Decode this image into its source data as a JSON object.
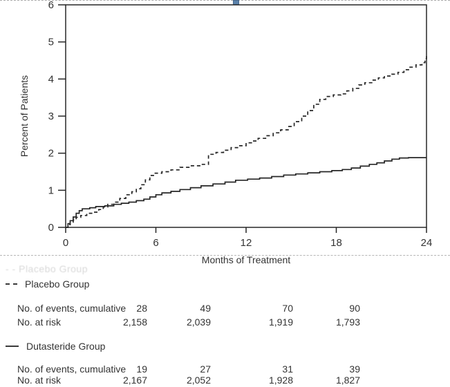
{
  "selection": {
    "handle_color": "#5b82ab",
    "border_style": "dashed-gray"
  },
  "chart_data": {
    "type": "line",
    "subtype": "kaplan-meier-step",
    "title": "",
    "xlabel": "Months of Treatment",
    "ylabel": "Percent of Patients",
    "xlim": [
      0,
      24
    ],
    "ylim": [
      0,
      6
    ],
    "xticks": [
      "0",
      "6",
      "12",
      "18",
      "24"
    ],
    "xtick_values": [
      0,
      6,
      12,
      18,
      24
    ],
    "yticks": [
      "0",
      "1",
      "2",
      "3",
      "4",
      "5",
      "6"
    ],
    "ytick_values": [
      0,
      1,
      2,
      3,
      4,
      5,
      6
    ],
    "grid": false,
    "frame": true,
    "line_color": "#262626",
    "series": [
      {
        "name": "Placebo Group",
        "style": "dashed",
        "points": [
          [
            0,
            0
          ],
          [
            0.15,
            0.07
          ],
          [
            0.3,
            0.14
          ],
          [
            0.5,
            0.2
          ],
          [
            0.7,
            0.27
          ],
          [
            1.0,
            0.32
          ],
          [
            1.4,
            0.38
          ],
          [
            1.8,
            0.41
          ],
          [
            2.2,
            0.48
          ],
          [
            2.5,
            0.55
          ],
          [
            2.8,
            0.62
          ],
          [
            3.2,
            0.68
          ],
          [
            3.6,
            0.78
          ],
          [
            4.0,
            0.88
          ],
          [
            4.4,
            0.96
          ],
          [
            4.7,
            1.04
          ],
          [
            5.0,
            1.15
          ],
          [
            5.3,
            1.28
          ],
          [
            5.6,
            1.4
          ],
          [
            5.9,
            1.46
          ],
          [
            6.4,
            1.5
          ],
          [
            7.0,
            1.55
          ],
          [
            7.6,
            1.62
          ],
          [
            8.2,
            1.66
          ],
          [
            9.0,
            1.7
          ],
          [
            9.5,
            1.97
          ],
          [
            10.0,
            2.02
          ],
          [
            10.5,
            2.08
          ],
          [
            11.0,
            2.15
          ],
          [
            11.5,
            2.2
          ],
          [
            12.0,
            2.28
          ],
          [
            12.4,
            2.33
          ],
          [
            12.8,
            2.4
          ],
          [
            13.3,
            2.47
          ],
          [
            13.8,
            2.55
          ],
          [
            14.3,
            2.63
          ],
          [
            14.8,
            2.72
          ],
          [
            15.2,
            2.85
          ],
          [
            15.7,
            3.0
          ],
          [
            16.1,
            3.15
          ],
          [
            16.5,
            3.32
          ],
          [
            16.9,
            3.45
          ],
          [
            17.3,
            3.53
          ],
          [
            17.8,
            3.57
          ],
          [
            18.3,
            3.6
          ],
          [
            18.7,
            3.68
          ],
          [
            19.1,
            3.75
          ],
          [
            19.5,
            3.84
          ],
          [
            19.9,
            3.9
          ],
          [
            20.4,
            3.97
          ],
          [
            20.8,
            4.03
          ],
          [
            21.2,
            4.08
          ],
          [
            21.7,
            4.13
          ],
          [
            22.1,
            4.18
          ],
          [
            22.5,
            4.25
          ],
          [
            22.9,
            4.32
          ],
          [
            23.3,
            4.38
          ],
          [
            23.7,
            4.44
          ],
          [
            23.9,
            4.55
          ],
          [
            24,
            4.62
          ]
        ]
      },
      {
        "name": "Dutasteride Group",
        "style": "solid",
        "points": [
          [
            0,
            0
          ],
          [
            0.15,
            0.1
          ],
          [
            0.3,
            0.18
          ],
          [
            0.5,
            0.28
          ],
          [
            0.7,
            0.38
          ],
          [
            0.9,
            0.45
          ],
          [
            1.1,
            0.5
          ],
          [
            1.6,
            0.53
          ],
          [
            2.0,
            0.56
          ],
          [
            2.6,
            0.58
          ],
          [
            3.2,
            0.62
          ],
          [
            3.7,
            0.65
          ],
          [
            4.2,
            0.68
          ],
          [
            4.7,
            0.72
          ],
          [
            5.2,
            0.76
          ],
          [
            5.6,
            0.82
          ],
          [
            6.0,
            0.88
          ],
          [
            6.4,
            0.93
          ],
          [
            7.0,
            0.97
          ],
          [
            7.6,
            1.02
          ],
          [
            8.3,
            1.07
          ],
          [
            9.0,
            1.12
          ],
          [
            9.8,
            1.17
          ],
          [
            10.6,
            1.22
          ],
          [
            11.3,
            1.27
          ],
          [
            12.1,
            1.3
          ],
          [
            12.9,
            1.33
          ],
          [
            13.7,
            1.37
          ],
          [
            14.5,
            1.41
          ],
          [
            15.3,
            1.44
          ],
          [
            16.1,
            1.47
          ],
          [
            16.9,
            1.5
          ],
          [
            17.7,
            1.53
          ],
          [
            18.4,
            1.56
          ],
          [
            19.0,
            1.6
          ],
          [
            19.6,
            1.65
          ],
          [
            20.2,
            1.7
          ],
          [
            20.7,
            1.74
          ],
          [
            21.2,
            1.79
          ],
          [
            21.7,
            1.84
          ],
          [
            22.2,
            1.87
          ],
          [
            22.8,
            1.88
          ],
          [
            24,
            1.88
          ]
        ]
      }
    ]
  },
  "ghost_text": "- -  Placebo Group",
  "legend_tables": [
    {
      "group": "Placebo Group",
      "marker": "dashed-line-icon",
      "rows": [
        {
          "label": "No. of events, cumulative",
          "values": [
            "28",
            "49",
            "70",
            "90"
          ]
        },
        {
          "label": "No. at risk",
          "values": [
            "2,158",
            "2,039",
            "1,919",
            "1,793"
          ]
        }
      ]
    },
    {
      "group": "Dutasteride Group",
      "marker": "solid-line-icon",
      "rows": [
        {
          "label": "No. of events, cumulative",
          "values": [
            "19",
            "27",
            "31",
            "39"
          ]
        },
        {
          "label": "No. at risk",
          "values": [
            "2,167",
            "2,052",
            "1,928",
            "1,827"
          ]
        }
      ]
    }
  ]
}
